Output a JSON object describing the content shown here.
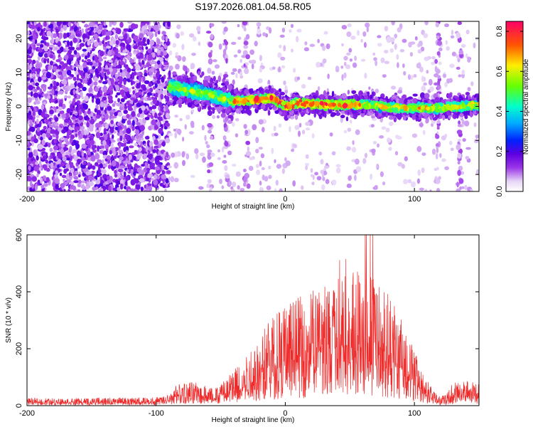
{
  "title": "S197.2026.081.04.58.R05",
  "chart_data": [
    {
      "type": "heatmap",
      "name": "spectrogram",
      "xlabel": "Height of straight line (km)",
      "ylabel": "Frequency (Hz)",
      "xlim": [
        -200,
        150
      ],
      "ylim": [
        -25,
        25
      ],
      "xticks": [
        "-200",
        "-100",
        "0",
        "100"
      ],
      "xtick_values": [
        -200,
        -100,
        0,
        100
      ],
      "yticks": [
        "-20",
        "-10",
        "0",
        "10",
        "20"
      ],
      "ytick_values": [
        -20,
        -10,
        0,
        10,
        20
      ],
      "signal_band": {
        "onset_height_km": -90,
        "center_frequency_hz": [
          [
            -90,
            6
          ],
          [
            -80,
            5
          ],
          [
            -60,
            3.5
          ],
          [
            -40,
            1.5
          ],
          [
            -20,
            2
          ],
          [
            -10,
            2.5
          ],
          [
            0,
            0
          ],
          [
            10,
            1
          ],
          [
            30,
            0.5
          ],
          [
            60,
            0.5
          ],
          [
            90,
            -0.5
          ],
          [
            120,
            -0.5
          ],
          [
            150,
            0.5
          ]
        ]
      },
      "colorbar": {
        "label": "Normalized spectral amplitude",
        "range": [
          0.0,
          0.85
        ],
        "ticks": [
          "0.0",
          "0.2",
          "0.4",
          "0.6",
          "0.8"
        ],
        "tick_values": [
          0.0,
          0.2,
          0.4,
          0.6,
          0.8
        ]
      }
    },
    {
      "type": "line",
      "name": "snr",
      "xlabel": "Height of straight line (km)",
      "ylabel": "SNR (10 * v/v)",
      "xlim": [
        -200,
        150
      ],
      "ylim": [
        0,
        600
      ],
      "xticks": [
        "-200",
        "-100",
        "0",
        "100"
      ],
      "xtick_values": [
        -200,
        -100,
        0,
        100
      ],
      "yticks": [
        "0",
        "200",
        "400",
        "600"
      ],
      "ytick_values": [
        0,
        200,
        400,
        600
      ],
      "color": "#ee2b2b",
      "envelope": [
        [
          -200,
          18
        ],
        [
          -150,
          18
        ],
        [
          -100,
          20
        ],
        [
          -90,
          25
        ],
        [
          -85,
          50
        ],
        [
          -70,
          60
        ],
        [
          -55,
          40
        ],
        [
          -45,
          70
        ],
        [
          -35,
          110
        ],
        [
          -25,
          140
        ],
        [
          -15,
          190
        ],
        [
          -5,
          230
        ],
        [
          5,
          250
        ],
        [
          15,
          260
        ],
        [
          25,
          280
        ],
        [
          35,
          300
        ],
        [
          45,
          310
        ],
        [
          55,
          320
        ],
        [
          65,
          310
        ],
        [
          75,
          290
        ],
        [
          85,
          250
        ],
        [
          95,
          170
        ],
        [
          105,
          90
        ],
        [
          112,
          50
        ],
        [
          118,
          22
        ],
        [
          124,
          25
        ],
        [
          130,
          55
        ],
        [
          140,
          60
        ],
        [
          150,
          50
        ]
      ],
      "peak_value": 600
    }
  ]
}
